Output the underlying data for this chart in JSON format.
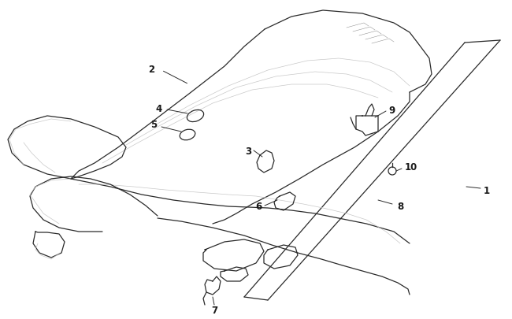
{
  "background_color": "#ffffff",
  "line_color": "#2a2a2a",
  "light_line_color": "#c8c8c8",
  "mid_line_color": "#888888",
  "text_color": "#1a1a1a",
  "figsize": [
    6.5,
    4.06
  ],
  "dpi": 100,
  "label_fontsize": 8.5,
  "lw_main": 0.9,
  "lw_light": 0.5,
  "lw_thin": 0.35
}
